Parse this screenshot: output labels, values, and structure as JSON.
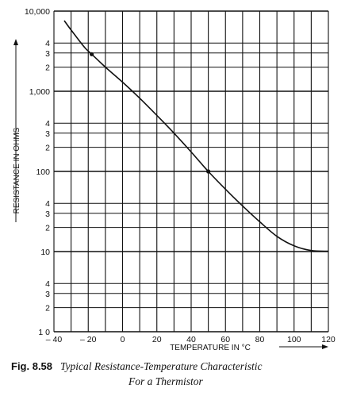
{
  "chart_data": {
    "type": "line",
    "xlabel": "TEMPERATURE IN °C",
    "ylabel": "RESISTANCE IN OHMS",
    "xlim": [
      -40,
      120
    ],
    "ylim": [
      10,
      10000
    ],
    "yscale": "log",
    "grid": true,
    "x_ticks": [
      "– 40",
      "– 20",
      "0",
      "20",
      "40",
      "60",
      "80",
      "100",
      "120"
    ],
    "x_tick_values": [
      -40,
      -20,
      0,
      20,
      40,
      60,
      80,
      100,
      120
    ],
    "y_decade_labels": [
      "10,000",
      "1,000",
      "100",
      "10",
      "1 0"
    ],
    "y_minor_labels": [
      "4",
      "3",
      "2"
    ],
    "series": [
      {
        "x": [
          -34,
          -28,
          -22,
          -18,
          -10,
          0,
          10,
          20,
          30,
          40,
          50,
          60,
          70,
          80,
          90,
          100,
          110,
          120
        ],
        "y": [
          7600,
          5100,
          3500,
          2900,
          2000,
          1300,
          820,
          500,
          300,
          175,
          100,
          60,
          37,
          23.5,
          15.5,
          11.8,
          10.3,
          10.1
        ]
      }
    ],
    "markers": [
      {
        "x": -18,
        "y": 2900
      },
      {
        "x": 50,
        "y": 100
      }
    ]
  },
  "caption": {
    "figure_number": "Fig. 8.58",
    "title_line1": "Typical Resistance-Temperature Characteristic",
    "title_line2": "For a Thermistor"
  }
}
